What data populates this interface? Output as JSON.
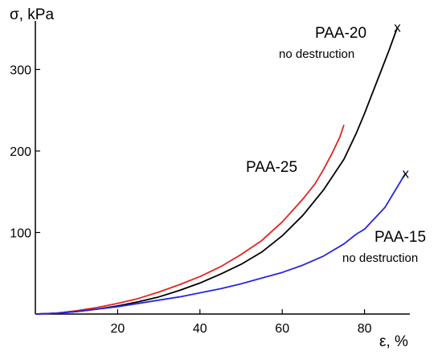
{
  "chart_data": {
    "type": "line",
    "xlabel": "ε, %",
    "ylabel": "σ, kPa",
    "xlim": [
      0,
      92
    ],
    "ylim": [
      0,
      360
    ],
    "xticks": [
      20,
      40,
      60,
      80
    ],
    "yticks": [
      100,
      200,
      300
    ],
    "grid": false,
    "series": [
      {
        "name": "PAA-25",
        "color": "#e8221f",
        "x": [
          0,
          5,
          10,
          15,
          20,
          25,
          30,
          35,
          40,
          45,
          50,
          55,
          60,
          65,
          68,
          70,
          72,
          74,
          75
        ],
        "y": [
          0,
          1,
          4,
          8,
          13,
          19,
          27,
          36,
          46,
          58,
          73,
          90,
          113,
          141,
          160,
          177,
          196,
          217,
          232
        ]
      },
      {
        "name": "PAA-20",
        "note": "no destruction",
        "end_mark": "x",
        "color": "#000000",
        "x": [
          0,
          5,
          10,
          15,
          20,
          25,
          30,
          35,
          40,
          45,
          50,
          55,
          60,
          65,
          70,
          75,
          78,
          80,
          82,
          84,
          86,
          88
        ],
        "y": [
          0,
          1,
          3,
          6,
          10,
          15,
          21,
          29,
          38,
          49,
          61,
          76,
          96,
          121,
          152,
          190,
          222,
          246,
          272,
          298,
          324,
          352
        ]
      },
      {
        "name": "PAA-15",
        "note": "no destruction",
        "end_mark": "x",
        "color": "#2626e6",
        "x": [
          0,
          5,
          10,
          15,
          20,
          25,
          30,
          35,
          40,
          45,
          50,
          55,
          60,
          65,
          70,
          75,
          78,
          80,
          85,
          90
        ],
        "y": [
          0,
          1,
          3,
          6,
          9,
          13,
          17,
          21,
          26,
          31,
          37,
          44,
          51,
          60,
          71,
          86,
          98,
          104,
          131,
          173
        ]
      }
    ]
  }
}
